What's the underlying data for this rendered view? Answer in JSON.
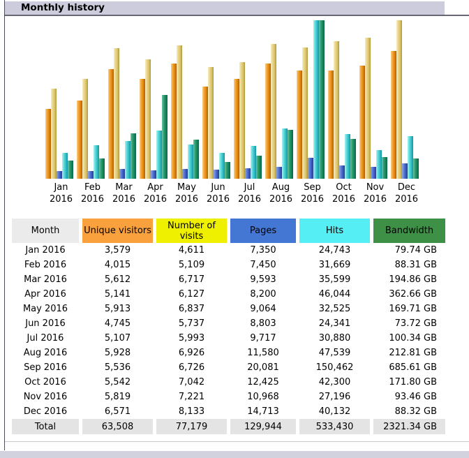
{
  "header": {
    "title": "Monthly history"
  },
  "colors": {
    "section_header_bg": "#CCCCDD",
    "header_month": "#EBEBEB",
    "header_unique_visitors": "#F9A13D",
    "header_number_of_visits": "#EFEF00",
    "header_pages": "#4477D4",
    "header_hits": "#55EEF5",
    "header_bandwidth": "#3D9045",
    "bar_unique_visitors": "#E68A10",
    "bar_number_of_visits": "#DCC468",
    "bar_pages": "#3B5BC0",
    "bar_hits": "#33BFC8",
    "bar_bandwidth": "#17865E",
    "total_row_bg": "#E4E4E4"
  },
  "chart_data": {
    "type": "bar",
    "title": "Monthly history",
    "categories": [
      "Jan 2016",
      "Feb 2016",
      "Mar 2016",
      "Apr 2016",
      "May 2016",
      "Jun 2016",
      "Jul 2016",
      "Aug 2016",
      "Sep 2016",
      "Oct 2016",
      "Nov 2016",
      "Dec 2016"
    ],
    "series": [
      {
        "name": "Unique visitors",
        "scale_group": "visits",
        "color": "#E68A10",
        "values": [
          3579,
          4015,
          5612,
          5141,
          5913,
          4745,
          5107,
          5928,
          5536,
          5542,
          5819,
          6571
        ]
      },
      {
        "name": "Number of visits",
        "scale_group": "visits",
        "color": "#DCC468",
        "values": [
          4611,
          5109,
          6717,
          6127,
          6837,
          5737,
          5993,
          6926,
          6726,
          7042,
          7221,
          8133
        ]
      },
      {
        "name": "Pages",
        "scale_group": "traffic",
        "color": "#3B5BC0",
        "values": [
          7350,
          7450,
          9593,
          8200,
          9064,
          8803,
          9717,
          11580,
          20081,
          12425,
          10968,
          14713
        ]
      },
      {
        "name": "Hits",
        "scale_group": "traffic",
        "color": "#33BFC8",
        "values": [
          24743,
          31669,
          35599,
          46044,
          32525,
          24341,
          30880,
          47539,
          150462,
          42300,
          27196,
          40132
        ]
      },
      {
        "name": "Bandwidth",
        "unit": "GB",
        "scale_group": "bandwidth",
        "color": "#17865E",
        "values": [
          79.74,
          88.31,
          194.86,
          362.66,
          169.71,
          73.72,
          100.34,
          212.81,
          685.61,
          171.8,
          93.46,
          88.32
        ]
      }
    ],
    "layout": {
      "grid": false,
      "axes_drawn": false,
      "legend_position": "none",
      "normalization": "each scale_group scaled independently to its own maximum"
    }
  },
  "table": {
    "headers": [
      "Month",
      "Unique visitors",
      "Number of visits",
      "Pages",
      "Hits",
      "Bandwidth"
    ],
    "rows": [
      [
        "Jan 2016",
        "3,579",
        "4,611",
        "7,350",
        "24,743",
        "79.74 GB"
      ],
      [
        "Feb 2016",
        "4,015",
        "5,109",
        "7,450",
        "31,669",
        "88.31 GB"
      ],
      [
        "Mar 2016",
        "5,612",
        "6,717",
        "9,593",
        "35,599",
        "194.86 GB"
      ],
      [
        "Apr 2016",
        "5,141",
        "6,127",
        "8,200",
        "46,044",
        "362.66 GB"
      ],
      [
        "May 2016",
        "5,913",
        "6,837",
        "9,064",
        "32,525",
        "169.71 GB"
      ],
      [
        "Jun 2016",
        "4,745",
        "5,737",
        "8,803",
        "24,341",
        "73.72 GB"
      ],
      [
        "Jul 2016",
        "5,107",
        "5,993",
        "9,717",
        "30,880",
        "100.34 GB"
      ],
      [
        "Aug 2016",
        "5,928",
        "6,926",
        "11,580",
        "47,539",
        "212.81 GB"
      ],
      [
        "Sep 2016",
        "5,536",
        "6,726",
        "20,081",
        "150,462",
        "685.61 GB"
      ],
      [
        "Oct 2016",
        "5,542",
        "7,042",
        "12,425",
        "42,300",
        "171.80 GB"
      ],
      [
        "Nov 2016",
        "5,819",
        "7,221",
        "10,968",
        "27,196",
        "93.46 GB"
      ],
      [
        "Dec 2016",
        "6,571",
        "8,133",
        "14,713",
        "40,132",
        "88.32 GB"
      ]
    ],
    "total": [
      "Total",
      "63,508",
      "77,179",
      "129,944",
      "533,430",
      "2321.34 GB"
    ]
  }
}
